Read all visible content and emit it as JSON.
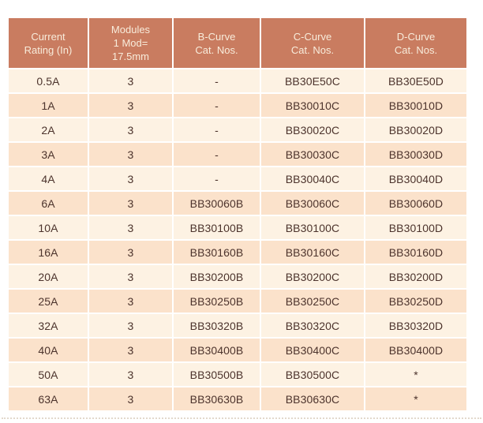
{
  "colors": {
    "page_bg": "#ffffff",
    "header_bg": "#c97c60",
    "header_text": "#f8ecdb",
    "row_light": "#fdf2e3",
    "row_dark": "#fbe2cb",
    "cell_text": "#4c332c",
    "rule_color": "#e2d9cd"
  },
  "table": {
    "columns": [
      {
        "id": "current-rating",
        "lines": [
          "Current",
          "Rating (In)"
        ]
      },
      {
        "id": "modules",
        "lines": [
          "Modules",
          "1 Mod=",
          "17.5mm"
        ]
      },
      {
        "id": "b-curve",
        "lines": [
          "B-Curve",
          "Cat. Nos."
        ]
      },
      {
        "id": "c-curve",
        "lines": [
          "C-Curve",
          "Cat. Nos."
        ]
      },
      {
        "id": "d-curve",
        "lines": [
          "D-Curve",
          "Cat. Nos."
        ]
      }
    ],
    "rows": [
      [
        "0.5A",
        "3",
        "-",
        "BB30E50C",
        "BB30E50D"
      ],
      [
        "1A",
        "3",
        "-",
        "BB30010C",
        "BB30010D"
      ],
      [
        "2A",
        "3",
        "-",
        "BB30020C",
        "BB30020D"
      ],
      [
        "3A",
        "3",
        "-",
        "BB30030C",
        "BB30030D"
      ],
      [
        "4A",
        "3",
        "-",
        "BB30040C",
        "BB30040D"
      ],
      [
        "6A",
        "3",
        "BB30060B",
        "BB30060C",
        "BB30060D"
      ],
      [
        "10A",
        "3",
        "BB30100B",
        "BB30100C",
        "BB30100D"
      ],
      [
        "16A",
        "3",
        "BB30160B",
        "BB30160C",
        "BB30160D"
      ],
      [
        "20A",
        "3",
        "BB30200B",
        "BB30200C",
        "BB30200D"
      ],
      [
        "25A",
        "3",
        "BB30250B",
        "BB30250C",
        "BB30250D"
      ],
      [
        "32A",
        "3",
        "BB30320B",
        "BB30320C",
        "BB30320D"
      ],
      [
        "40A",
        "3",
        "BB30400B",
        "BB30400C",
        "BB30400D"
      ],
      [
        "50A",
        "3",
        "BB30500B",
        "BB30500C",
        "*"
      ],
      [
        "63A",
        "3",
        "BB30630B",
        "BB30630C",
        "*"
      ]
    ]
  }
}
